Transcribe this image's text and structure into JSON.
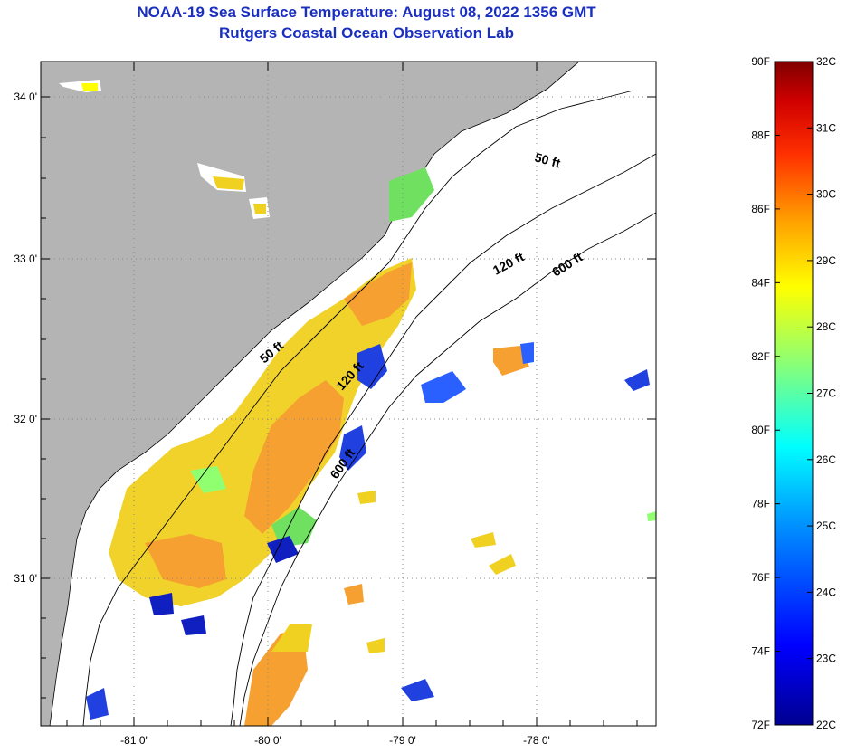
{
  "title_line1": "NOAA-19 Sea Surface Temperature:  August 08, 2022 1356 GMT",
  "title_line2": "Rutgers Coastal Ocean Observation Lab",
  "map": {
    "lon_ticks": [
      "-81 0'",
      "-80 0'",
      "-79 0'",
      "-78 0'"
    ],
    "lat_ticks": [
      "34 0'",
      "33 0'",
      "32 0'",
      "31 0'"
    ],
    "isobaths": [
      "50 ft",
      "120 ft",
      "600 ft",
      "50 ft",
      "120 ft",
      "600 ft"
    ]
  },
  "colorbar": {
    "fahrenheit": [
      "90F",
      "88F",
      "86F",
      "84F",
      "82F",
      "80F",
      "78F",
      "76F",
      "74F",
      "72F"
    ],
    "celsius": [
      "32C",
      "31C",
      "30C",
      "29C",
      "28C",
      "27C",
      "26C",
      "25C",
      "24C",
      "23C",
      "22C"
    ],
    "colors": [
      "#000090",
      "#0000ff",
      "#0090ff",
      "#00ffff",
      "#90ff70",
      "#ffff00",
      "#ffa000",
      "#ff3000",
      "#d00000",
      "#800000"
    ]
  },
  "colors": {
    "land": "#b4b4b4",
    "water": "#ffffff",
    "title": "#1a2fbf"
  }
}
